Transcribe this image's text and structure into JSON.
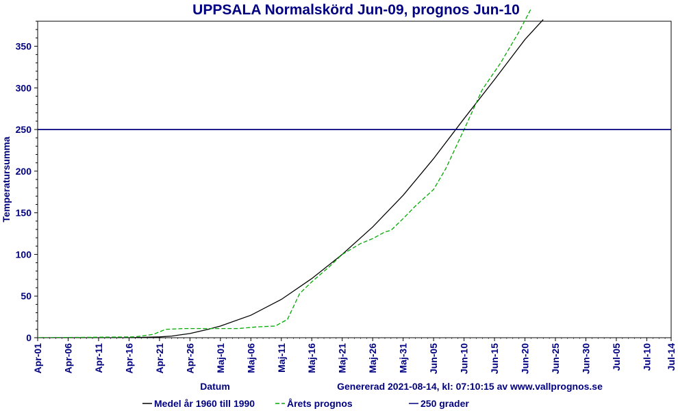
{
  "chart_data": {
    "type": "line",
    "title": "UPPSALA Normalskörd Jun-09, prognos Jun-10",
    "xlabel": "Datum",
    "ylabel": "Temperatursumma",
    "generated_text": "Genererad 2021-08-14, kl: 07:10:15 av www.vallprognos.se",
    "x_range": [
      "Apr-01",
      "Jul-14"
    ],
    "ylim": [
      0,
      380
    ],
    "yticks": [
      0,
      50,
      100,
      150,
      200,
      250,
      300,
      350
    ],
    "xticks": [
      "Apr-01",
      "Apr-06",
      "Apr-11",
      "Apr-16",
      "Apr-21",
      "Apr-26",
      "Maj-01",
      "Maj-06",
      "Maj-11",
      "Maj-16",
      "Maj-21",
      "Maj-26",
      "Maj-31",
      "Jun-05",
      "Jun-10",
      "Jun-15",
      "Jun-20",
      "Jun-25",
      "Jun-30",
      "Jul-05",
      "Jul-10",
      "Jul-14"
    ],
    "grid": false,
    "legend_position": "bottom",
    "colors": {
      "series1": "#000000",
      "series2": "#00aa00",
      "threshold": "#000080",
      "text": "#000080"
    },
    "series": [
      {
        "name": "Medel år 1960 till 1990",
        "style": "solid",
        "x": [
          "Apr-01",
          "Apr-16",
          "Apr-21",
          "Apr-23",
          "Apr-26",
          "Apr-29",
          "Maj-01",
          "Maj-06",
          "Maj-11",
          "Maj-16",
          "Maj-21",
          "Maj-26",
          "Maj-31",
          "Jun-05",
          "Jun-10",
          "Jun-15",
          "Jun-20",
          "Jun-23"
        ],
        "values": [
          0,
          0,
          1,
          2,
          5,
          10,
          14,
          27,
          46,
          71,
          100,
          133,
          171,
          215,
          263,
          310,
          358,
          382
        ]
      },
      {
        "name": "Årets prognos",
        "style": "dashed",
        "x": [
          "Apr-01",
          "Apr-17",
          "Apr-20",
          "Apr-22",
          "Apr-25",
          "Apr-30",
          "Maj-04",
          "Maj-07",
          "Maj-10",
          "Maj-12",
          "Maj-14",
          "Maj-16",
          "Maj-19",
          "Maj-21",
          "Maj-24",
          "Maj-26",
          "Maj-28",
          "Maj-29",
          "Maj-31",
          "Jun-02",
          "Jun-05",
          "Jun-07",
          "Jun-10",
          "Jun-13",
          "Jun-16",
          "Jun-19",
          "Jun-21"
        ],
        "values": [
          0,
          1,
          4,
          10,
          11,
          11,
          11,
          13,
          14,
          22,
          53,
          67,
          86,
          100,
          113,
          119,
          127,
          129,
          143,
          158,
          178,
          203,
          250,
          298,
          330,
          367,
          395
        ]
      },
      {
        "name": "250 grader",
        "style": "solid",
        "x": [
          "Apr-01",
          "Jul-14"
        ],
        "values": [
          250,
          250
        ]
      }
    ]
  }
}
